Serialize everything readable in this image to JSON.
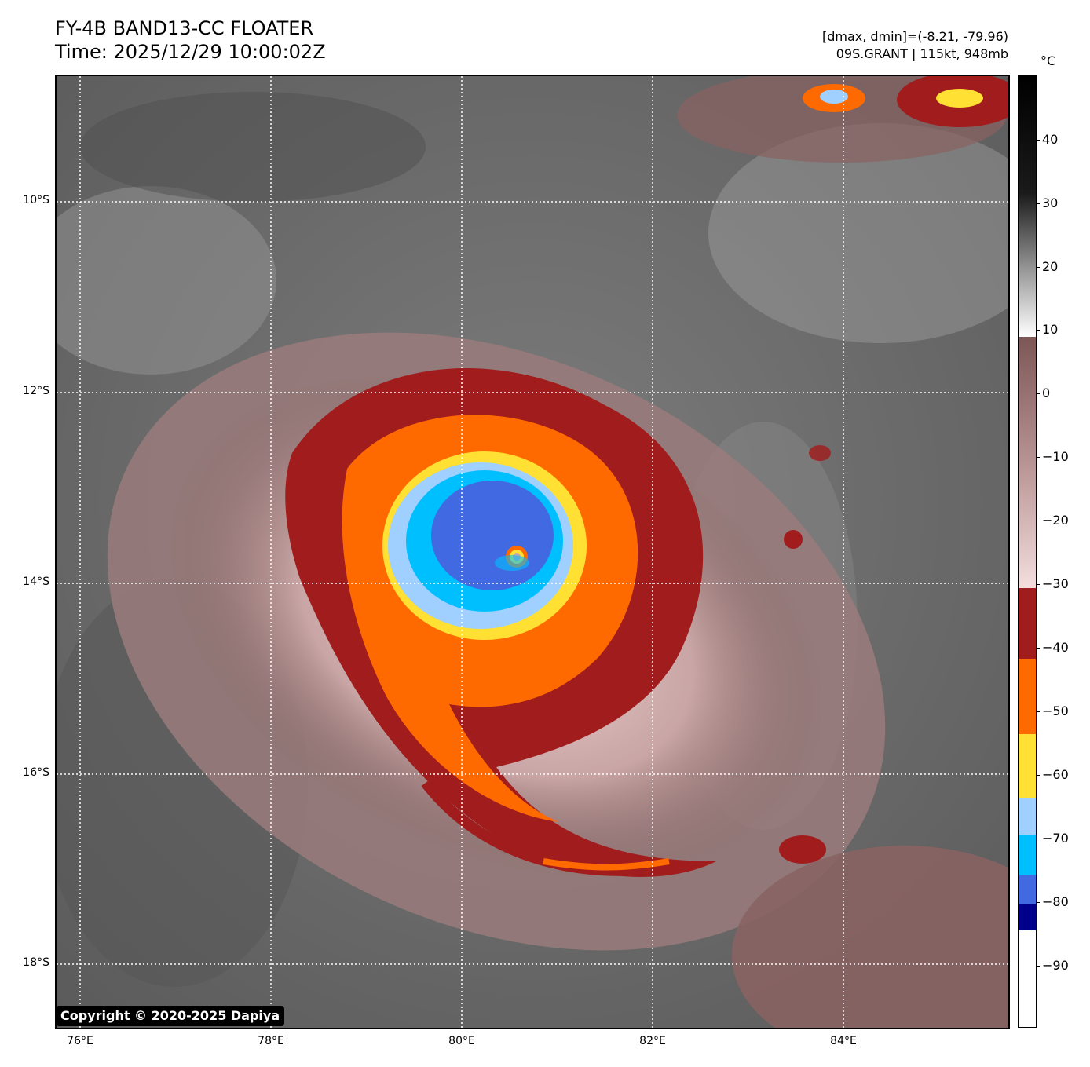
{
  "header": {
    "title_line1": "FY-4B BAND13-CC FLOATER",
    "title_line2": "Time: 2025/12/29 10:00:02Z",
    "info_line1": "[dmax, dmin]=(-8.21, -79.96)",
    "info_line2": "09S.GRANT | 115kt, 948mb"
  },
  "map": {
    "lat_labels": [
      "10°S",
      "12°S",
      "14°S",
      "16°S",
      "18°S"
    ],
    "lon_labels": [
      "76°E",
      "78°E",
      "80°E",
      "82°E",
      "84°E"
    ],
    "storm_name": "09S.GRANT",
    "eye": "near 13.8°S, 80.6°E"
  },
  "copyright": "Copyright © 2020-2025 Dapiya",
  "colorbar": {
    "unit": "°C",
    "tick_labels": [
      "40",
      "30",
      "20",
      "10",
      "0",
      "−10",
      "−20",
      "−30",
      "−40",
      "−50",
      "−60",
      "−70",
      "−80",
      "−90"
    ],
    "colors": {
      "red": "#a11c1c",
      "orange": "#ff6a00",
      "yellow": "#ffe033",
      "light_blue": "#9fd0ff",
      "cyan": "#00bfff",
      "blue": "#4169e1",
      "navy": "#00008b",
      "cloud_mauve": "#8a6363",
      "background_gray": "#6a6a6a"
    }
  }
}
